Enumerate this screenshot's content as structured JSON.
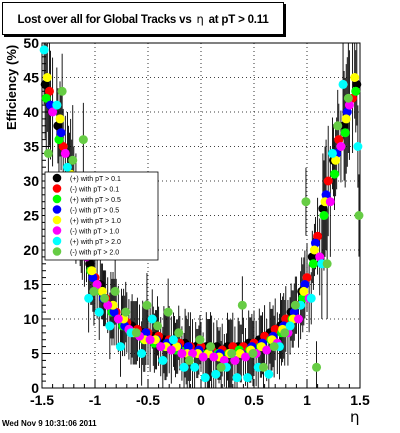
{
  "title_parts": [
    "Lost over all for Global Tracks vs",
    "η",
    "at pT > 0.11"
  ],
  "timestamp": "Wed Nov  9 10:31:06 2011",
  "chart_data": {
    "type": "scatter",
    "xlabel": "η",
    "ylabel": "Efficiency (%)",
    "xlim": [
      -1.5,
      1.5
    ],
    "ylim": [
      0,
      50
    ],
    "x_ticks": [
      "-1.5",
      "-1",
      "-0.5",
      "0",
      "0.5",
      "1",
      "1.5"
    ],
    "y_ticks": [
      "0",
      "5",
      "10",
      "15",
      "20",
      "25",
      "30",
      "35",
      "40",
      "45",
      "50"
    ],
    "grid": true,
    "legend_position": "middle-left",
    "series": [
      {
        "name": "(+) with pT > 0.1",
        "color": "#000000",
        "x": [
          -1.47,
          -1.35,
          -1.25,
          -1.15,
          -1.05,
          -0.95,
          -0.85,
          -0.75,
          -0.65,
          -0.55,
          -0.45,
          -0.35,
          -0.25,
          -0.15,
          -0.05,
          0.05,
          0.15,
          0.25,
          0.35,
          0.45,
          0.55,
          0.65,
          0.75,
          0.85,
          0.95,
          1.05,
          1.15,
          1.25,
          1.35,
          1.47
        ],
        "y": [
          44,
          38,
          30,
          24,
          18,
          15,
          12,
          10,
          9,
          8,
          7.5,
          7,
          6.5,
          6.5,
          6,
          6,
          6,
          6,
          6,
          6.5,
          7,
          8,
          9,
          11,
          14,
          19,
          26,
          33,
          38,
          44
        ]
      },
      {
        "name": "(-) with pT > 0.1",
        "color": "#ff0000",
        "x": [
          -1.43,
          -1.3,
          -1.2,
          -1.1,
          -1.0,
          -0.9,
          -0.8,
          -0.7,
          -0.6,
          -0.5,
          -0.4,
          -0.3,
          -0.2,
          -0.1,
          0.0,
          0.1,
          0.2,
          0.3,
          0.4,
          0.5,
          0.6,
          0.7,
          0.8,
          0.9,
          1.0,
          1.1,
          1.2,
          1.3,
          1.43
        ],
        "y": [
          43,
          35,
          27,
          20,
          16,
          13,
          11,
          9.5,
          8.5,
          8,
          7.5,
          7,
          6.5,
          6,
          6,
          5.5,
          5.5,
          6,
          6,
          6.5,
          7.5,
          8.5,
          10,
          12,
          16,
          22,
          30,
          36,
          42
        ]
      },
      {
        "name": "(+) with pT > 0.5",
        "color": "#00ff00",
        "x": [
          -1.46,
          -1.34,
          -1.24,
          -1.14,
          -1.04,
          -0.94,
          -0.84,
          -0.74,
          -0.64,
          -0.54,
          -0.44,
          -0.34,
          -0.24,
          -0.14,
          -0.04,
          0.06,
          0.16,
          0.26,
          0.36,
          0.46,
          0.56,
          0.66,
          0.76,
          0.86,
          0.96,
          1.06,
          1.16,
          1.26,
          1.36,
          1.46
        ],
        "y": [
          42,
          36,
          29,
          23,
          17,
          14,
          11,
          9,
          8,
          7,
          6.5,
          6,
          5.5,
          5.5,
          5,
          5,
          5,
          5,
          5.5,
          5.5,
          6,
          7,
          8,
          10,
          13,
          18,
          25,
          31,
          37,
          43
        ]
      },
      {
        "name": "(-) with pT > 0.5",
        "color": "#0000ff",
        "x": [
          -1.42,
          -1.32,
          -1.22,
          -1.12,
          -1.02,
          -0.92,
          -0.82,
          -0.72,
          -0.62,
          -0.52,
          -0.42,
          -0.32,
          -0.22,
          -0.12,
          -0.02,
          0.08,
          0.18,
          0.28,
          0.38,
          0.48,
          0.58,
          0.68,
          0.78,
          0.88,
          0.98,
          1.08,
          1.18,
          1.28,
          1.38
        ],
        "y": [
          41,
          37,
          28,
          21,
          16,
          13,
          11,
          9,
          8,
          8,
          7,
          6.5,
          6,
          6,
          5.5,
          5,
          5,
          5,
          5,
          6,
          6.5,
          7.5,
          9,
          11,
          15,
          21,
          28,
          34,
          40
        ]
      },
      {
        "name": "(+) with pT > 1.0",
        "color": "#ffff00",
        "x": [
          -1.45,
          -1.33,
          -1.23,
          -1.13,
          -1.03,
          -0.93,
          -0.83,
          -0.73,
          -0.63,
          -0.53,
          -0.43,
          -0.33,
          -0.23,
          -0.13,
          -0.03,
          0.07,
          0.17,
          0.27,
          0.37,
          0.47,
          0.57,
          0.67,
          0.77,
          0.87,
          0.97,
          1.07,
          1.17,
          1.27,
          1.37,
          1.45
        ],
        "y": [
          45,
          39,
          31,
          22,
          17,
          14,
          12,
          10,
          8,
          7,
          7,
          6,
          6,
          5,
          5,
          5,
          4.5,
          5,
          5,
          5.5,
          6,
          7,
          8.5,
          10,
          14,
          20,
          27,
          33,
          39,
          45
        ]
      },
      {
        "name": "(-) with pT > 1.0",
        "color": "#ff00ff",
        "x": [
          -1.4,
          -1.28,
          -1.18,
          -1.08,
          -0.98,
          -0.88,
          -0.78,
          -0.68,
          -0.58,
          -0.48,
          -0.38,
          -0.28,
          -0.18,
          -0.08,
          0.02,
          0.12,
          0.22,
          0.32,
          0.42,
          0.52,
          0.62,
          0.72,
          0.82,
          0.92,
          1.02,
          1.12,
          1.22,
          1.32,
          1.4
        ],
        "y": [
          40,
          34,
          26,
          19,
          15,
          12,
          10,
          8.5,
          7.5,
          7,
          6,
          5.5,
          5,
          5,
          4.5,
          4.5,
          4,
          4,
          4.5,
          5,
          5.5,
          6.5,
          8,
          10,
          13,
          19,
          27,
          35,
          41
        ]
      },
      {
        "name": "(+) with pT > 2.0",
        "color": "#00ffff",
        "x": [
          -1.48,
          -1.36,
          -1.26,
          -1.16,
          -1.06,
          -0.96,
          -0.86,
          -0.76,
          -0.66,
          -0.56,
          -0.46,
          -0.36,
          -0.26,
          -0.16,
          -0.06,
          0.04,
          0.14,
          0.24,
          0.34,
          0.44,
          0.54,
          0.64,
          0.74,
          0.84,
          0.94,
          1.04,
          1.14,
          1.24,
          1.34,
          1.48
        ],
        "y": [
          49,
          41,
          32,
          25,
          13,
          11,
          9,
          6,
          8,
          5,
          10,
          4,
          7,
          3,
          3,
          1.5,
          2,
          3,
          1.5,
          1.5,
          3,
          2,
          6,
          9,
          12,
          13,
          18,
          34,
          44,
          35
        ]
      },
      {
        "name": "(-) with pT > 2.0",
        "color": "#66cc44",
        "x": [
          -1.44,
          -1.31,
          -1.21,
          -1.11,
          -1.01,
          -0.91,
          -0.81,
          -0.71,
          -0.61,
          -0.51,
          -0.41,
          -0.31,
          -0.21,
          -0.11,
          -0.01,
          0.09,
          0.19,
          0.29,
          0.39,
          0.49,
          0.59,
          0.69,
          0.79,
          0.89,
          0.99,
          1.09,
          1.19,
          1.29,
          1.39,
          1.49
        ],
        "y": [
          34,
          43,
          33,
          36,
          14,
          13,
          14,
          11,
          8,
          12,
          9,
          11,
          8,
          4,
          7,
          6,
          3,
          5,
          12,
          5,
          3,
          6,
          8,
          12,
          27,
          3,
          18,
          38,
          42,
          25
        ]
      }
    ]
  }
}
